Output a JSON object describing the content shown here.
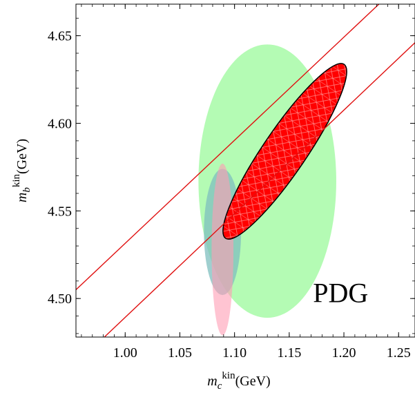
{
  "chart_data": {
    "type": "scatter",
    "title": "",
    "xlabel": {
      "symbol": "m",
      "subscript": "c",
      "superscript": "kin",
      "unit": "(GeV)"
    },
    "ylabel": {
      "symbol": "m",
      "subscript": "b",
      "superscript": "kin",
      "unit": "(GeV)"
    },
    "xlim": [
      0.955,
      1.265
    ],
    "ylim": [
      4.478,
      4.668
    ],
    "x_ticks": [
      "1.00",
      "1.05",
      "1.10",
      "1.15",
      "1.20",
      "1.25"
    ],
    "y_ticks": [
      "4.50",
      "4.55",
      "4.60",
      "4.65"
    ],
    "grid": false,
    "annotations": [
      {
        "text": "PDG",
        "x": 1.197,
        "y": 4.498
      }
    ],
    "regions": [
      {
        "shape": "ellipse",
        "color": "#b4fbb4",
        "center": [
          1.13,
          4.567
        ],
        "semi_axes": [
          0.063,
          0.078
        ],
        "angle_deg": 0
      },
      {
        "shape": "ellipse",
        "color": "#7fbfbf",
        "opacity": 0.75,
        "center": [
          1.089,
          4.538
        ],
        "semi_axes": [
          0.017,
          0.036
        ],
        "angle_deg": 0
      },
      {
        "shape": "ellipse",
        "color": "#ff9db4",
        "opacity": 0.6,
        "center": [
          1.089,
          4.528
        ],
        "semi_axes": [
          0.01,
          0.049
        ],
        "angle_deg": 0
      },
      {
        "shape": "ellipse",
        "color": "#ff0000",
        "outline": "#000000",
        "hatched": true,
        "center": [
          1.146,
          4.584
        ],
        "semi_axes": [
          0.0735,
          0.0145
        ],
        "angle_deg": 42.5
      }
    ],
    "series": [
      {
        "type": "line",
        "color": "#e01010",
        "points": [
          [
            0.955,
            4.505
          ],
          [
            1.232,
            4.668
          ]
        ]
      },
      {
        "type": "line",
        "color": "#e01010",
        "points": [
          [
            0.981,
            4.478
          ],
          [
            1.265,
            4.646
          ]
        ]
      }
    ]
  }
}
